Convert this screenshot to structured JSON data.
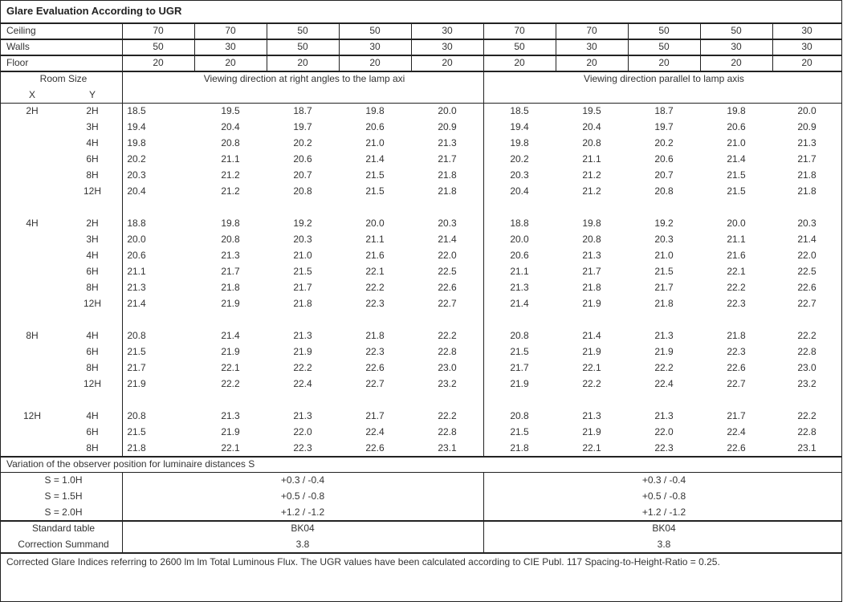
{
  "title": "Glare Evaluation According to UGR",
  "reflectances": [
    {
      "label": "Ceiling",
      "values": [
        "70",
        "70",
        "50",
        "50",
        "30",
        "70",
        "70",
        "50",
        "50",
        "30"
      ]
    },
    {
      "label": "Walls",
      "values": [
        "50",
        "30",
        "50",
        "30",
        "30",
        "50",
        "30",
        "50",
        "30",
        "30"
      ]
    },
    {
      "label": "Floor",
      "values": [
        "20",
        "20",
        "20",
        "20",
        "20",
        "20",
        "20",
        "20",
        "20",
        "20"
      ]
    }
  ],
  "header": {
    "room_size": "Room Size",
    "x": "X",
    "y": "Y",
    "right_angles": "Viewing direction at right angles to the lamp axi",
    "parallel": "Viewing direction parallel to lamp axis"
  },
  "groups": [
    {
      "x": "2H",
      "rows": [
        {
          "y": "2H",
          "right": [
            "18.5",
            "19.5",
            "18.7",
            "19.8",
            "20.0"
          ],
          "parallel": [
            "18.5",
            "19.5",
            "18.7",
            "19.8",
            "20.0"
          ]
        },
        {
          "y": "3H",
          "right": [
            "19.4",
            "20.4",
            "19.7",
            "20.6",
            "20.9"
          ],
          "parallel": [
            "19.4",
            "20.4",
            "19.7",
            "20.6",
            "20.9"
          ]
        },
        {
          "y": "4H",
          "right": [
            "19.8",
            "20.8",
            "20.2",
            "21.0",
            "21.3"
          ],
          "parallel": [
            "19.8",
            "20.8",
            "20.2",
            "21.0",
            "21.3"
          ]
        },
        {
          "y": "6H",
          "right": [
            "20.2",
            "21.1",
            "20.6",
            "21.4",
            "21.7"
          ],
          "parallel": [
            "20.2",
            "21.1",
            "20.6",
            "21.4",
            "21.7"
          ]
        },
        {
          "y": "8H",
          "right": [
            "20.3",
            "21.2",
            "20.7",
            "21.5",
            "21.8"
          ],
          "parallel": [
            "20.3",
            "21.2",
            "20.7",
            "21.5",
            "21.8"
          ]
        },
        {
          "y": "12H",
          "right": [
            "20.4",
            "21.2",
            "20.8",
            "21.5",
            "21.8"
          ],
          "parallel": [
            "20.4",
            "21.2",
            "20.8",
            "21.5",
            "21.8"
          ]
        }
      ]
    },
    {
      "x": "4H",
      "rows": [
        {
          "y": "2H",
          "right": [
            "18.8",
            "19.8",
            "19.2",
            "20.0",
            "20.3"
          ],
          "parallel": [
            "18.8",
            "19.8",
            "19.2",
            "20.0",
            "20.3"
          ]
        },
        {
          "y": "3H",
          "right": [
            "20.0",
            "20.8",
            "20.3",
            "21.1",
            "21.4"
          ],
          "parallel": [
            "20.0",
            "20.8",
            "20.3",
            "21.1",
            "21.4"
          ]
        },
        {
          "y": "4H",
          "right": [
            "20.6",
            "21.3",
            "21.0",
            "21.6",
            "22.0"
          ],
          "parallel": [
            "20.6",
            "21.3",
            "21.0",
            "21.6",
            "22.0"
          ]
        },
        {
          "y": "6H",
          "right": [
            "21.1",
            "21.7",
            "21.5",
            "22.1",
            "22.5"
          ],
          "parallel": [
            "21.1",
            "21.7",
            "21.5",
            "22.1",
            "22.5"
          ]
        },
        {
          "y": "8H",
          "right": [
            "21.3",
            "21.8",
            "21.7",
            "22.2",
            "22.6"
          ],
          "parallel": [
            "21.3",
            "21.8",
            "21.7",
            "22.2",
            "22.6"
          ]
        },
        {
          "y": "12H",
          "right": [
            "21.4",
            "21.9",
            "21.8",
            "22.3",
            "22.7"
          ],
          "parallel": [
            "21.4",
            "21.9",
            "21.8",
            "22.3",
            "22.7"
          ]
        }
      ]
    },
    {
      "x": "8H",
      "rows": [
        {
          "y": "4H",
          "right": [
            "20.8",
            "21.4",
            "21.3",
            "21.8",
            "22.2"
          ],
          "parallel": [
            "20.8",
            "21.4",
            "21.3",
            "21.8",
            "22.2"
          ]
        },
        {
          "y": "6H",
          "right": [
            "21.5",
            "21.9",
            "21.9",
            "22.3",
            "22.8"
          ],
          "parallel": [
            "21.5",
            "21.9",
            "21.9",
            "22.3",
            "22.8"
          ]
        },
        {
          "y": "8H",
          "right": [
            "21.7",
            "22.1",
            "22.2",
            "22.6",
            "23.0"
          ],
          "parallel": [
            "21.7",
            "22.1",
            "22.2",
            "22.6",
            "23.0"
          ]
        },
        {
          "y": "12H",
          "right": [
            "21.9",
            "22.2",
            "22.4",
            "22.7",
            "23.2"
          ],
          "parallel": [
            "21.9",
            "22.2",
            "22.4",
            "22.7",
            "23.2"
          ]
        }
      ]
    },
    {
      "x": "12H",
      "rows": [
        {
          "y": "4H",
          "right": [
            "20.8",
            "21.3",
            "21.3",
            "21.7",
            "22.2"
          ],
          "parallel": [
            "20.8",
            "21.3",
            "21.3",
            "21.7",
            "22.2"
          ]
        },
        {
          "y": "6H",
          "right": [
            "21.5",
            "21.9",
            "22.0",
            "22.4",
            "22.8"
          ],
          "parallel": [
            "21.5",
            "21.9",
            "22.0",
            "22.4",
            "22.8"
          ]
        },
        {
          "y": "8H",
          "right": [
            "21.8",
            "22.1",
            "22.3",
            "22.6",
            "23.1"
          ],
          "parallel": [
            "21.8",
            "22.1",
            "22.3",
            "22.6",
            "23.1"
          ]
        }
      ]
    }
  ],
  "variation": {
    "title": "Variation of the observer position for luminaire distances S",
    "rows": [
      {
        "label": "S = 1.0H",
        "right": "+0.3 / -0.4",
        "parallel": "+0.3 / -0.4"
      },
      {
        "label": "S = 1.5H",
        "right": "+0.5 / -0.8",
        "parallel": "+0.5 / -0.8"
      },
      {
        "label": "S = 2.0H",
        "right": "+1.2 / -1.2",
        "parallel": "+1.2 / -1.2"
      }
    ]
  },
  "standard": {
    "label": "Standard table",
    "right": "BK04",
    "parallel": "BK04"
  },
  "correction": {
    "label": "Correction Summand",
    "right": "3.8",
    "parallel": "3.8"
  },
  "footer": "Corrected Glare Indices referring to 2600 lm lm Total Luminous Flux. The UGR values have been calculated according to CIE Publ. 117    Spacing-to-Height-Ratio = 0.25."
}
